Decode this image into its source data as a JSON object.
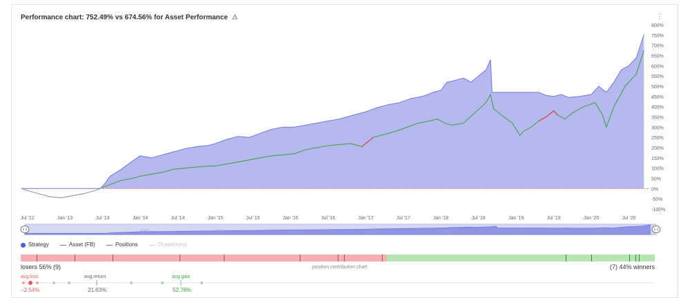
{
  "title": "Performance chart: 752.49% vs 674.56% for Asset Performance",
  "title_icon": "warning-icon",
  "menu_icon": "more-dots-icon",
  "chart_data": {
    "type": "area",
    "title": "Performance chart: 752.49% vs 674.56% for Asset Performance",
    "y_unit": "%",
    "ylim": [
      -100,
      800
    ],
    "y_ticks": [
      "-100%",
      "-50%",
      "0%",
      "50%",
      "100%",
      "150%",
      "200%",
      "250%",
      "300%",
      "350%",
      "400%",
      "450%",
      "500%",
      "550%",
      "600%",
      "650%",
      "700%",
      "750%",
      "800%"
    ],
    "y_tick_values": [
      -100,
      -50,
      0,
      50,
      100,
      150,
      200,
      250,
      300,
      350,
      400,
      450,
      500,
      550,
      600,
      650,
      700,
      750,
      800
    ],
    "x_ticks": [
      "Jul '12",
      "Jan '13",
      "Jul '13",
      "Jan '14",
      "Jul '14",
      "Jan '15",
      "Jul '15",
      "Jan '16",
      "Jul '16",
      "Jan '17",
      "Jul '17",
      "Jan '18",
      "Jul '18",
      "Jan '19",
      "Jul '19",
      "Jan '20",
      "Jul '20"
    ],
    "x_tick_dates": [
      2012.5,
      2013.0,
      2013.5,
      2014.0,
      2014.5,
      2015.0,
      2015.5,
      2016.0,
      2016.5,
      2017.0,
      2017.5,
      2018.0,
      2018.5,
      2019.0,
      2019.5,
      2020.0,
      2020.5
    ],
    "xlim": [
      2012.42,
      2020.78
    ],
    "grid": false,
    "series": [
      {
        "name": "Strategy",
        "color": "#b6b9f0",
        "line_color": "#6f77dd",
        "points": [
          [
            2012.42,
            0
          ],
          [
            2013.42,
            0
          ],
          [
            2013.47,
            0
          ],
          [
            2013.52,
            20
          ],
          [
            2013.6,
            60
          ],
          [
            2013.75,
            95
          ],
          [
            2013.9,
            135
          ],
          [
            2014.0,
            160
          ],
          [
            2014.15,
            150
          ],
          [
            2014.3,
            165
          ],
          [
            2014.45,
            180
          ],
          [
            2014.6,
            195
          ],
          [
            2014.75,
            205
          ],
          [
            2014.9,
            210
          ],
          [
            2015.0,
            220
          ],
          [
            2015.15,
            240
          ],
          [
            2015.3,
            255
          ],
          [
            2015.45,
            250
          ],
          [
            2015.6,
            270
          ],
          [
            2015.75,
            290
          ],
          [
            2015.9,
            300
          ],
          [
            2016.05,
            300
          ],
          [
            2016.2,
            310
          ],
          [
            2016.35,
            320
          ],
          [
            2016.5,
            330
          ],
          [
            2016.65,
            340
          ],
          [
            2016.8,
            355
          ],
          [
            2017.0,
            375
          ],
          [
            2017.15,
            395
          ],
          [
            2017.3,
            410
          ],
          [
            2017.45,
            420
          ],
          [
            2017.6,
            440
          ],
          [
            2017.75,
            450
          ],
          [
            2017.9,
            470
          ],
          [
            2018.0,
            480
          ],
          [
            2018.08,
            520
          ],
          [
            2018.15,
            525
          ],
          [
            2018.3,
            540
          ],
          [
            2018.4,
            520
          ],
          [
            2018.5,
            550
          ],
          [
            2018.6,
            580
          ],
          [
            2018.66,
            630
          ],
          [
            2018.68,
            470
          ],
          [
            2018.75,
            470
          ],
          [
            2019.0,
            470
          ],
          [
            2019.3,
            470
          ],
          [
            2019.4,
            455
          ],
          [
            2019.5,
            450
          ],
          [
            2019.6,
            460
          ],
          [
            2019.7,
            445
          ],
          [
            2019.85,
            450
          ],
          [
            2020.0,
            460
          ],
          [
            2020.1,
            500
          ],
          [
            2020.2,
            470
          ],
          [
            2020.3,
            520
          ],
          [
            2020.4,
            580
          ],
          [
            2020.5,
            600
          ],
          [
            2020.6,
            640
          ],
          [
            2020.7,
            752.49
          ]
        ]
      },
      {
        "name": "Asset (FB)",
        "color": "#3fa43f",
        "points": [
          [
            2012.42,
            0
          ],
          [
            2012.55,
            -15
          ],
          [
            2012.65,
            -25
          ],
          [
            2012.8,
            -40
          ],
          [
            2012.95,
            -45
          ],
          [
            2013.1,
            -35
          ],
          [
            2013.25,
            -25
          ],
          [
            2013.4,
            -10
          ],
          [
            2013.5,
            5
          ],
          [
            2013.6,
            20
          ],
          [
            2013.75,
            40
          ],
          [
            2013.9,
            50
          ],
          [
            2014.0,
            60
          ],
          [
            2014.15,
            70
          ],
          [
            2014.3,
            80
          ],
          [
            2014.45,
            95
          ],
          [
            2014.6,
            100
          ],
          [
            2014.75,
            105
          ],
          [
            2014.9,
            110
          ],
          [
            2015.0,
            110
          ],
          [
            2015.15,
            120
          ],
          [
            2015.3,
            130
          ],
          [
            2015.45,
            140
          ],
          [
            2015.6,
            150
          ],
          [
            2015.75,
            160
          ],
          [
            2015.9,
            165
          ],
          [
            2016.05,
            170
          ],
          [
            2016.2,
            190
          ],
          [
            2016.35,
            200
          ],
          [
            2016.5,
            210
          ],
          [
            2016.65,
            215
          ],
          [
            2016.8,
            220
          ],
          [
            2016.95,
            205
          ],
          [
            2017.1,
            250
          ],
          [
            2017.25,
            265
          ],
          [
            2017.4,
            280
          ],
          [
            2017.55,
            300
          ],
          [
            2017.7,
            320
          ],
          [
            2017.85,
            330
          ],
          [
            2017.95,
            340
          ],
          [
            2018.05,
            320
          ],
          [
            2018.15,
            310
          ],
          [
            2018.3,
            320
          ],
          [
            2018.45,
            370
          ],
          [
            2018.6,
            420
          ],
          [
            2018.66,
            460
          ],
          [
            2018.7,
            390
          ],
          [
            2018.8,
            360
          ],
          [
            2018.95,
            320
          ],
          [
            2019.05,
            260
          ],
          [
            2019.1,
            280
          ],
          [
            2019.2,
            300
          ],
          [
            2019.3,
            330
          ],
          [
            2019.4,
            350
          ],
          [
            2019.5,
            380
          ],
          [
            2019.55,
            360
          ],
          [
            2019.65,
            340
          ],
          [
            2019.75,
            370
          ],
          [
            2019.9,
            400
          ],
          [
            2020.05,
            420
          ],
          [
            2020.15,
            360
          ],
          [
            2020.2,
            300
          ],
          [
            2020.3,
            400
          ],
          [
            2020.45,
            500
          ],
          [
            2020.6,
            560
          ],
          [
            2020.7,
            674.56
          ]
        ]
      }
    ],
    "loss_segments": [
      [
        2016.95,
        2017.05
      ],
      [
        2019.35,
        2019.5
      ]
    ],
    "legend": [
      {
        "label": "Strategy",
        "style": "dot",
        "color": "#4a5fd3"
      },
      {
        "label": "Asset (FB)",
        "style": "line",
        "color": "#777777"
      },
      {
        "label": "Positions",
        "style": "line",
        "color": "#777777"
      },
      {
        "label": "Drawdowns",
        "style": "line",
        "color": "#cccccc",
        "disabled": true
      }
    ],
    "navigator_labels": [
      "2014",
      "2015",
      "2016",
      "2017",
      "2018",
      "2019",
      "2020"
    ]
  },
  "contribution": {
    "losers_label": "losers 56% (9)",
    "center_label": "position contribution chart",
    "winners_label": "(7) 44% winners",
    "negative_fraction": 0.577,
    "negative_color": "#f8aeb0",
    "positive_color": "#b6e7b2",
    "negative_ticks": [
      0.025,
      0.085,
      0.145,
      0.25,
      0.32,
      0.44,
      0.5,
      0.51,
      0.57
    ],
    "positive_ticks": [
      0.86,
      0.9,
      0.96,
      0.97,
      0.975
    ]
  },
  "distribution": {
    "avg_loss_label": "avg.loss",
    "avg_loss_value": "−2.54%",
    "avg_return_label": "avg.return",
    "avg_return_value": "21.63%",
    "avg_gain_label": "avg.gain",
    "avg_gain_value": "52.76%"
  }
}
